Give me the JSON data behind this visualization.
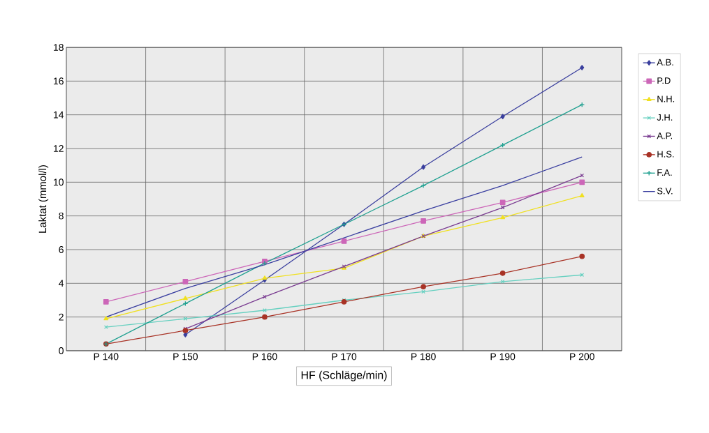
{
  "chart_data": {
    "type": "line",
    "xlabel": "HF (Schläge/min)",
    "ylabel": "Laktat (mmol/l)",
    "categories": [
      "P 140",
      "P 150",
      "P 160",
      "P 170",
      "P 180",
      "P 190",
      "P 200"
    ],
    "series": [
      {
        "name": "A.B.",
        "color": "#3a3f9e",
        "marker": "diamond",
        "values": [
          null,
          0.95,
          4.2,
          7.5,
          10.9,
          13.9,
          16.8
        ]
      },
      {
        "name": "P.D",
        "color": "#cc66b8",
        "marker": "square",
        "values": [
          2.9,
          4.1,
          5.3,
          6.5,
          7.7,
          8.8,
          10.0
        ]
      },
      {
        "name": "N.H.",
        "color": "#f0e020",
        "marker": "triangle",
        "values": [
          1.9,
          3.1,
          4.3,
          4.9,
          6.8,
          7.9,
          9.2
        ]
      },
      {
        "name": "J.H.",
        "color": "#66d0c0",
        "marker": "cross",
        "values": [
          1.4,
          1.9,
          2.4,
          3.0,
          3.5,
          4.1,
          4.5
        ]
      },
      {
        "name": "A.P.",
        "color": "#7a3c91",
        "marker": "cross",
        "values": [
          null,
          1.3,
          3.2,
          5.0,
          6.8,
          8.5,
          10.4
        ]
      },
      {
        "name": "H.S.",
        "color": "#a83225",
        "marker": "circle",
        "values": [
          0.4,
          1.2,
          2.0,
          2.9,
          3.8,
          4.6,
          5.6
        ]
      },
      {
        "name": "F.A.",
        "color": "#1fa090",
        "marker": "plus",
        "values": [
          0.4,
          2.8,
          5.2,
          7.5,
          9.8,
          12.2,
          14.6
        ]
      },
      {
        "name": "S.V.",
        "color": "#3a3fa0",
        "marker": "none",
        "values": [
          2.0,
          3.7,
          5.1,
          6.7,
          8.3,
          9.8,
          11.5
        ]
      }
    ],
    "ylim": [
      0,
      18
    ],
    "yticks": [
      0,
      2,
      4,
      6,
      8,
      10,
      12,
      14,
      16,
      18
    ],
    "grid": true,
    "legend": "right",
    "line_style": "solid"
  }
}
